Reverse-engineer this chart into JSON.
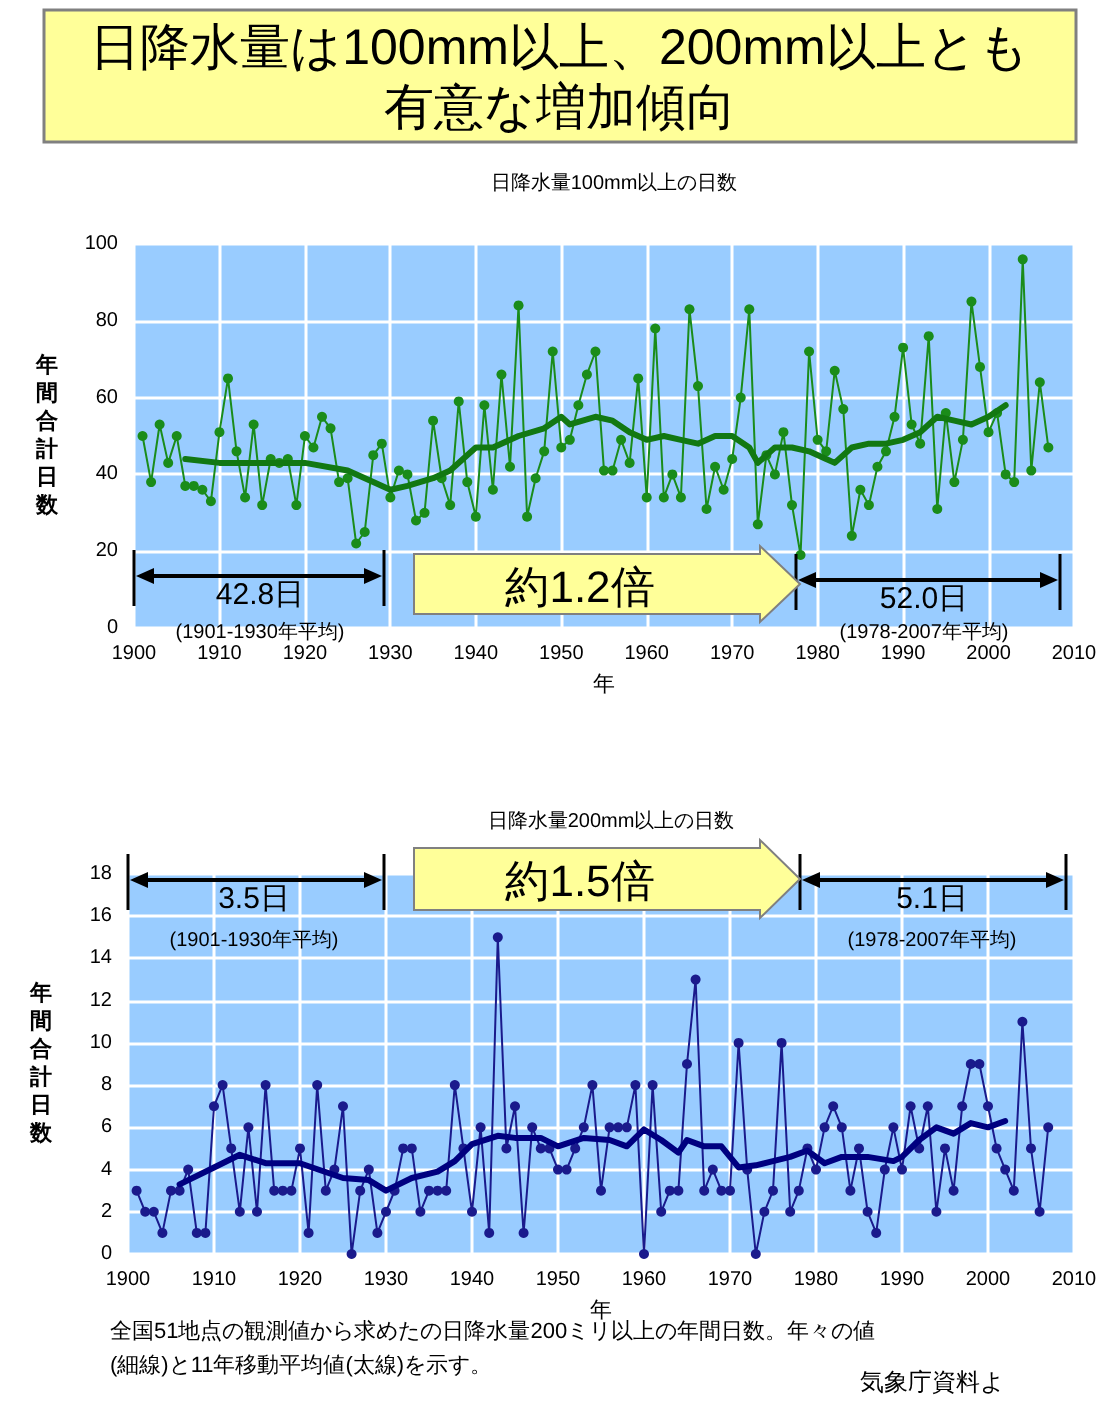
{
  "chart_data": [
    {
      "type": "line",
      "title": "日降水量100mm以上の日数",
      "xlabel": "年",
      "ylabel": "年間合計日数",
      "annotations": [
        "日降水量は100mm以上、200mm以上とも",
        "有意な増加傾向",
        "42.8日",
        "(1901-1930年平均)",
        "約1.2倍",
        "52.0日",
        "(1978-2007年平均)"
      ],
      "x": [
        1901,
        1902,
        1903,
        1904,
        1905,
        1906,
        1907,
        1908,
        1909,
        1910,
        1911,
        1912,
        1913,
        1914,
        1915,
        1916,
        1917,
        1918,
        1919,
        1920,
        1921,
        1922,
        1923,
        1924,
        1925,
        1926,
        1927,
        1928,
        1929,
        1930,
        1931,
        1932,
        1933,
        1934,
        1935,
        1936,
        1937,
        1938,
        1939,
        1940,
        1941,
        1942,
        1943,
        1944,
        1945,
        1946,
        1947,
        1948,
        1949,
        1950,
        1951,
        1952,
        1953,
        1954,
        1955,
        1956,
        1957,
        1958,
        1959,
        1960,
        1961,
        1962,
        1963,
        1964,
        1965,
        1966,
        1967,
        1968,
        1969,
        1970,
        1971,
        1972,
        1973,
        1974,
        1975,
        1976,
        1977,
        1978,
        1979,
        1980,
        1981,
        1982,
        1983,
        1984,
        1985,
        1986,
        1987,
        1988,
        1989,
        1990,
        1991,
        1992,
        1993,
        1994,
        1995,
        1996,
        1997,
        1998,
        1999,
        2000,
        2001,
        2002,
        2003,
        2004,
        2005,
        2006,
        2007
      ],
      "series": [
        {
          "color": "#1a8c1a",
          "marker": "circle",
          "values": [
            50,
            38,
            53,
            43,
            50,
            37,
            37,
            36,
            33,
            51,
            65,
            46,
            34,
            53,
            32,
            44,
            43,
            44,
            32,
            50,
            47,
            55,
            52,
            38,
            39,
            22,
            25,
            45,
            48,
            34,
            41,
            40,
            28,
            30,
            54,
            39,
            32,
            59,
            38,
            29,
            58,
            36,
            66,
            42,
            84,
            29,
            39,
            46,
            72,
            47,
            49,
            58,
            66,
            72,
            41,
            41,
            49,
            43,
            65,
            34,
            78,
            34,
            40,
            34,
            83,
            63,
            31,
            42,
            36,
            44,
            60,
            83,
            27,
            45,
            40,
            51,
            32,
            19,
            72,
            49,
            46,
            67,
            57,
            24,
            36,
            32,
            42,
            46,
            55,
            73,
            53,
            48,
            76,
            31,
            56,
            38,
            49,
            85,
            68,
            51,
            56,
            40,
            38,
            96,
            41,
            64,
            47
          ]
        },
        {
          "color": "#127812",
          "marker": "none",
          "x": [
            1906,
            1910,
            1915,
            1920,
            1925,
            1928,
            1930,
            1932,
            1935,
            1937,
            1940,
            1942,
            1945,
            1948,
            1950,
            1951,
            1954,
            1956,
            1958,
            1960,
            1962,
            1964,
            1966,
            1968,
            1970,
            1972,
            1973,
            1975,
            1977,
            1979,
            1981,
            1982,
            1984,
            1986,
            1988,
            1990,
            1992,
            1994,
            1996,
            1998,
            2000,
            2002
          ],
          "values": [
            44,
            43,
            43,
            43,
            41,
            38,
            36,
            37,
            39,
            41,
            47,
            47,
            50,
            52,
            55,
            53,
            55,
            54,
            51,
            49,
            50,
            49,
            48,
            50,
            50,
            47,
            43,
            47,
            47,
            46,
            44,
            43,
            47,
            48,
            48,
            49,
            51,
            55,
            54,
            53,
            55,
            58
          ]
        }
      ],
      "xlim": [
        1900,
        2010
      ],
      "xticks": [
        1900,
        1910,
        1920,
        1930,
        1940,
        1950,
        1960,
        1970,
        1980,
        1990,
        2000,
        2010
      ],
      "ylim": [
        0,
        100
      ],
      "yticks": [
        0,
        20,
        40,
        60,
        80,
        100
      ],
      "grid": true
    },
    {
      "type": "line",
      "title": "日降水量200mm以上の日数",
      "xlabel": "年",
      "ylabel": "年間合計日数",
      "annotations": [
        "3.5日",
        "(1901-1930年平均)",
        "約1.5倍",
        "5.1日",
        "(1978-2007年平均)",
        "全国51地点の観測値から求めたの日降水量200ミリ以上の年間日数。年々の値",
        "(細線)と11年移動平均値(太線)を示す。",
        "気象庁資料よ"
      ],
      "x": [
        1901,
        1902,
        1903,
        1904,
        1905,
        1906,
        1907,
        1908,
        1909,
        1910,
        1911,
        1912,
        1913,
        1914,
        1915,
        1916,
        1917,
        1918,
        1919,
        1920,
        1921,
        1922,
        1923,
        1924,
        1925,
        1926,
        1927,
        1928,
        1929,
        1930,
        1931,
        1932,
        1933,
        1934,
        1935,
        1936,
        1937,
        1938,
        1939,
        1940,
        1941,
        1942,
        1943,
        1944,
        1945,
        1946,
        1947,
        1948,
        1949,
        1950,
        1951,
        1952,
        1953,
        1954,
        1955,
        1956,
        1957,
        1958,
        1959,
        1960,
        1961,
        1962,
        1963,
        1964,
        1965,
        1966,
        1967,
        1968,
        1969,
        1970,
        1971,
        1972,
        1973,
        1974,
        1975,
        1976,
        1977,
        1978,
        1979,
        1980,
        1981,
        1982,
        1983,
        1984,
        1985,
        1986,
        1987,
        1988,
        1989,
        1990,
        1991,
        1992,
        1993,
        1994,
        1995,
        1996,
        1997,
        1998,
        1999,
        2000,
        2001,
        2002,
        2003,
        2004,
        2005,
        2006,
        2007
      ],
      "series": [
        {
          "color": "#1a1a8c",
          "marker": "circle",
          "values": [
            3,
            2,
            2,
            1,
            3,
            3,
            4,
            1,
            1,
            7,
            8,
            5,
            2,
            6,
            2,
            8,
            3,
            3,
            3,
            5,
            1,
            8,
            3,
            4,
            7,
            0,
            3,
            4,
            1,
            2,
            3,
            5,
            5,
            2,
            3,
            3,
            3,
            8,
            5,
            2,
            6,
            1,
            15,
            5,
            7,
            1,
            6,
            5,
            5,
            4,
            4,
            5,
            6,
            8,
            3,
            6,
            6,
            6,
            8,
            0,
            8,
            2,
            3,
            3,
            9,
            13,
            3,
            4,
            3,
            3,
            10,
            4,
            0,
            2,
            3,
            10,
            2,
            3,
            5,
            4,
            6,
            7,
            6,
            3,
            5,
            2,
            1,
            4,
            6,
            4,
            7,
            5,
            7,
            2,
            5,
            3,
            7,
            9,
            9,
            7,
            5,
            4,
            3,
            11,
            5,
            2,
            6
          ]
        },
        {
          "color": "#000080",
          "marker": "none",
          "x": [
            1906,
            1910,
            1913,
            1916,
            1920,
            1925,
            1928,
            1930,
            1933,
            1936,
            1938,
            1940,
            1943,
            1945,
            1948,
            1950,
            1953,
            1956,
            1958,
            1960,
            1962,
            1964,
            1965,
            1967,
            1969,
            1971,
            1973,
            1975,
            1977,
            1979,
            1981,
            1983,
            1986,
            1989,
            1990,
            1992,
            1994,
            1996,
            1998,
            2000,
            2002
          ],
          "values": [
            3.3,
            4.1,
            4.7,
            4.3,
            4.3,
            3.6,
            3.5,
            3.0,
            3.6,
            3.9,
            4.4,
            5.2,
            5.6,
            5.5,
            5.5,
            5.1,
            5.5,
            5.4,
            5.1,
            5.9,
            5.4,
            4.8,
            5.4,
            5.1,
            5.1,
            4.1,
            4.2,
            4.4,
            4.6,
            4.9,
            4.3,
            4.6,
            4.6,
            4.4,
            4.6,
            5.4,
            6.0,
            5.7,
            6.2,
            6.0,
            6.3
          ]
        }
      ],
      "xlim": [
        1900,
        2010
      ],
      "xticks": [
        1900,
        1910,
        1920,
        1930,
        1940,
        1950,
        1960,
        1970,
        1980,
        1990,
        2000,
        2010
      ],
      "ylim": [
        0,
        18
      ],
      "yticks": [
        0,
        2,
        4,
        6,
        8,
        10,
        12,
        14,
        16,
        18
      ],
      "grid": true
    }
  ]
}
